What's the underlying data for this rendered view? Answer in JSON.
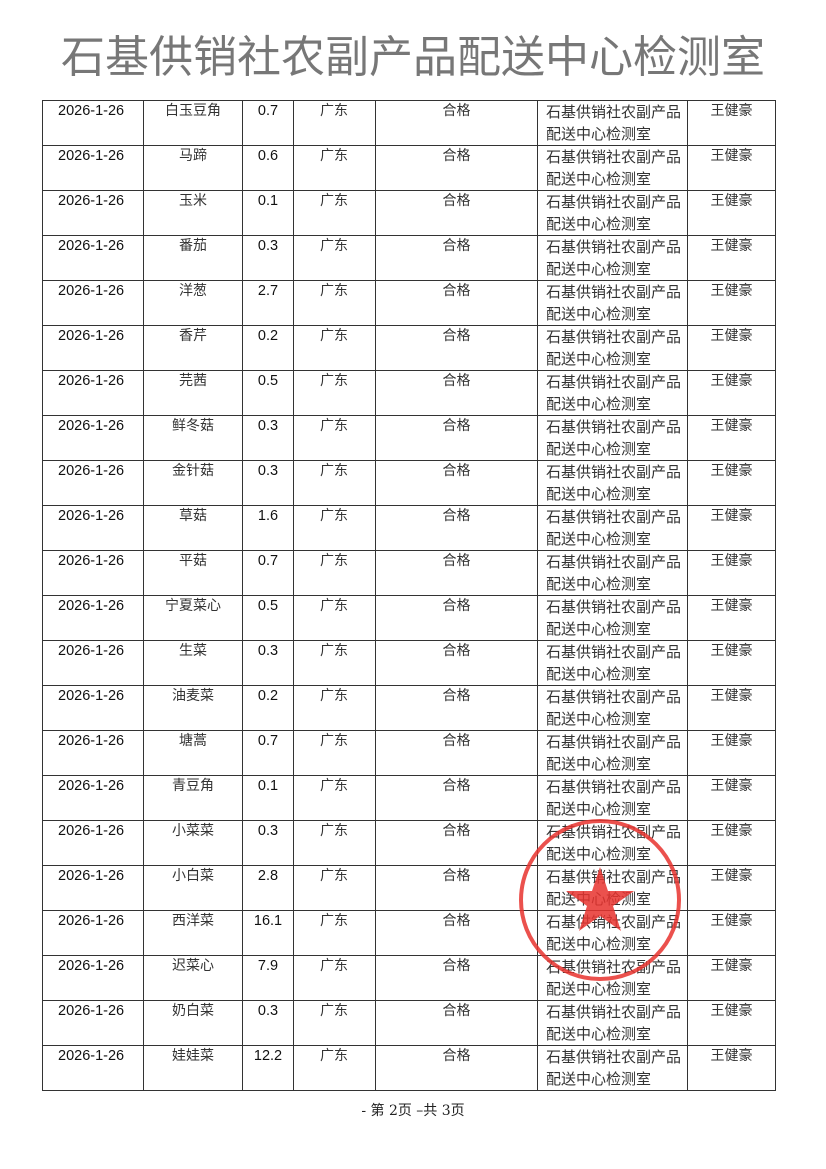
{
  "table": {
    "rows": [
      {
        "date": "2026-1-26",
        "item": "白玉豆角",
        "value": "0.7",
        "region": "广东",
        "result": "合格",
        "lab": "石基供销社农副产品配送中心检测室",
        "inspector": "王健豪"
      },
      {
        "date": "2026-1-26",
        "item": "马蹄",
        "value": "0.6",
        "region": "广东",
        "result": "合格",
        "lab": "石基供销社农副产品配送中心检测室",
        "inspector": "王健豪"
      },
      {
        "date": "2026-1-26",
        "item": "玉米",
        "value": "0.1",
        "region": "广东",
        "result": "合格",
        "lab": "石基供销社农副产品配送中心检测室",
        "inspector": "王健豪"
      },
      {
        "date": "2026-1-26",
        "item": "番茄",
        "value": "0.3",
        "region": "广东",
        "result": "合格",
        "lab": "石基供销社农副产品配送中心检测室",
        "inspector": "王健豪"
      },
      {
        "date": "2026-1-26",
        "item": "洋葱",
        "value": "2.7",
        "region": "广东",
        "result": "合格",
        "lab": "石基供销社农副产品配送中心检测室",
        "inspector": "王健豪"
      },
      {
        "date": "2026-1-26",
        "item": "香芹",
        "value": "0.2",
        "region": "广东",
        "result": "合格",
        "lab": "石基供销社农副产品配送中心检测室",
        "inspector": "王健豪"
      },
      {
        "date": "2026-1-26",
        "item": "芫茜",
        "value": "0.5",
        "region": "广东",
        "result": "合格",
        "lab": "石基供销社农副产品配送中心检测室",
        "inspector": "王健豪"
      },
      {
        "date": "2026-1-26",
        "item": "鲜冬菇",
        "value": "0.3",
        "region": "广东",
        "result": "合格",
        "lab": "石基供销社农副产品配送中心检测室",
        "inspector": "王健豪"
      },
      {
        "date": "2026-1-26",
        "item": "金针菇",
        "value": "0.3",
        "region": "广东",
        "result": "合格",
        "lab": "石基供销社农副产品配送中心检测室",
        "inspector": "王健豪"
      },
      {
        "date": "2026-1-26",
        "item": "草菇",
        "value": "1.6",
        "region": "广东",
        "result": "合格",
        "lab": "石基供销社农副产品配送中心检测室",
        "inspector": "王健豪"
      },
      {
        "date": "2026-1-26",
        "item": "平菇",
        "value": "0.7",
        "region": "广东",
        "result": "合格",
        "lab": "石基供销社农副产品配送中心检测室",
        "inspector": "王健豪"
      },
      {
        "date": "2026-1-26",
        "item": "宁夏菜心",
        "value": "0.5",
        "region": "广东",
        "result": "合格",
        "lab": "石基供销社农副产品配送中心检测室",
        "inspector": "王健豪"
      },
      {
        "date": "2026-1-26",
        "item": "生菜",
        "value": "0.3",
        "region": "广东",
        "result": "合格",
        "lab": "石基供销社农副产品配送中心检测室",
        "inspector": "王健豪"
      },
      {
        "date": "2026-1-26",
        "item": "油麦菜",
        "value": "0.2",
        "region": "广东",
        "result": "合格",
        "lab": "石基供销社农副产品配送中心检测室",
        "inspector": "王健豪"
      },
      {
        "date": "2026-1-26",
        "item": "塘蒿",
        "value": "0.7",
        "region": "广东",
        "result": "合格",
        "lab": "石基供销社农副产品配送中心检测室",
        "inspector": "王健豪"
      },
      {
        "date": "2026-1-26",
        "item": "青豆角",
        "value": "0.1",
        "region": "广东",
        "result": "合格",
        "lab": "石基供销社农副产品配送中心检测室",
        "inspector": "王健豪"
      },
      {
        "date": "2026-1-26",
        "item": "小菜菜",
        "value": "0.3",
        "region": "广东",
        "result": "合格",
        "lab": "石基供销社农副产品配送中心检测室",
        "inspector": "王健豪"
      },
      {
        "date": "2026-1-26",
        "item": "小白菜",
        "value": "2.8",
        "region": "广东",
        "result": "合格",
        "lab": "石基供销社农副产品配送中心检测室",
        "inspector": "王健豪"
      },
      {
        "date": "2026-1-26",
        "item": "西洋菜",
        "value": "16.1",
        "region": "广东",
        "result": "合格",
        "lab": "石基供销社农副产品配送中心检测室",
        "inspector": "王健豪"
      },
      {
        "date": "2026-1-26",
        "item": "迟菜心",
        "value": "7.9",
        "region": "广东",
        "result": "合格",
        "lab": "石基供销社农副产品配送中心检测室",
        "inspector": "王健豪"
      },
      {
        "date": "2026-1-26",
        "item": "奶白菜",
        "value": "0.3",
        "region": "广东",
        "result": "合格",
        "lab": "石基供销社农副产品配送中心检测室",
        "inspector": "王健豪"
      },
      {
        "date": "2026-1-26",
        "item": "娃娃菜",
        "value": "12.2",
        "region": "广东",
        "result": "合格",
        "lab": "石基供销社农副产品配送中心检测室",
        "inspector": "王健豪"
      }
    ]
  },
  "watermark": "石基供销社农副产品配送中心检测室",
  "stamp": {
    "text": "石基供销社农副产品配送中心检测室",
    "color": "#e8332f"
  },
  "footer": "- 第 2页 –共 3页"
}
